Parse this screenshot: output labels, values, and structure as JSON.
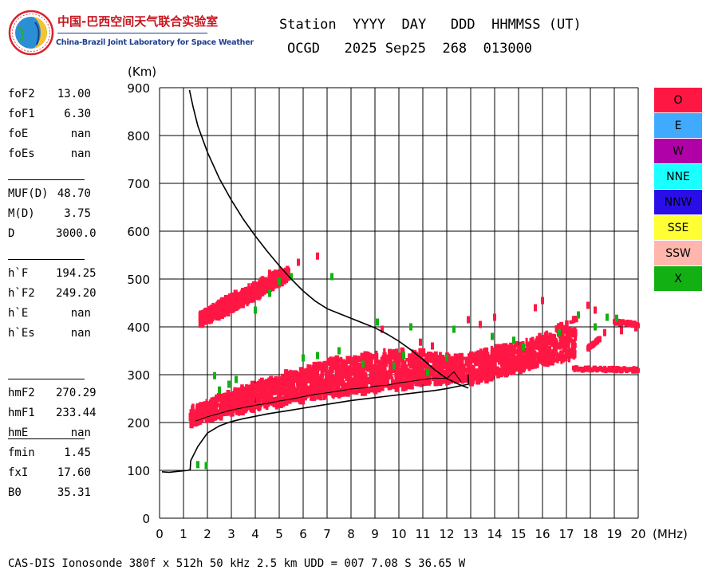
{
  "header": {
    "org_name_cn": "中国-巴西空间天气联合实验室",
    "org_name_en": "China-Brazil Joint Laboratory for Space Weather",
    "columns_line": "Station  YYYY  DAY   DDD  HHMMSS (UT)",
    "values_line": "OCGD   2025 Sep25  268  013000"
  },
  "params": {
    "group1": [
      {
        "label": "foF2",
        "value": "13.00"
      },
      {
        "label": "foF1",
        "value": "6.30"
      },
      {
        "label": "foE",
        "value": "nan"
      },
      {
        "label": "foEs",
        "value": "nan"
      }
    ],
    "group2": [
      {
        "label": "MUF(D)",
        "value": "48.70"
      },
      {
        "label": "M(D)",
        "value": "3.75"
      },
      {
        "label": "D",
        "value": "3000.0"
      }
    ],
    "group3": [
      {
        "label": "h`F",
        "value": "194.25"
      },
      {
        "label": "h`F2",
        "value": "249.20"
      },
      {
        "label": "h`E",
        "value": "nan"
      },
      {
        "label": "h`Es",
        "value": "nan"
      }
    ],
    "group4": [
      {
        "label": "hmF2",
        "value": "270.29"
      },
      {
        "label": "hmF1",
        "value": "233.44"
      },
      {
        "label": "hmE",
        "value": "nan"
      }
    ],
    "group5": [
      {
        "label": "fmin",
        "value": "1.45"
      },
      {
        "label": "fxI",
        "value": "17.60"
      },
      {
        "label": "B0",
        "value": "35.31"
      }
    ]
  },
  "legend": [
    {
      "label": "O",
      "color": "#ff1744"
    },
    {
      "label": "E",
      "color": "#40aaff"
    },
    {
      "label": "W",
      "color": "#b000a8"
    },
    {
      "label": "NNE",
      "color": "#1affff"
    },
    {
      "label": "NNW",
      "color": "#2a0ee8"
    },
    {
      "label": "SSE",
      "color": "#ffff33"
    },
    {
      "label": "SSW",
      "color": "#ffb6ad"
    },
    {
      "label": "X",
      "color": "#12b012"
    }
  ],
  "footer": "CAS-DIS Ionosonde 380f x 512h 50 kHz 2.5 km UDD = 007 7.08 S 36.65 W",
  "chart_data": {
    "type": "scatter",
    "title": "",
    "xlabel": "(MHz)",
    "ylabel": "(Km)",
    "xlim": [
      0,
      20
    ],
    "ylim": [
      0,
      900
    ],
    "xticks": [
      0,
      1,
      2,
      3,
      4,
      5,
      6,
      7,
      8,
      9,
      10,
      11,
      12,
      13,
      14,
      15,
      16,
      17,
      18,
      19,
      20
    ],
    "yticks": [
      0,
      100,
      200,
      300,
      400,
      500,
      600,
      700,
      800,
      900
    ],
    "grid": true,
    "legend_position": "right",
    "series": [
      {
        "name": "O",
        "color": "#ff1744",
        "bands": [
          {
            "x_start": 1.3,
            "x_end": 12.9,
            "y_low": [
              196,
              212,
              225,
              236,
              247,
              256,
              263,
              270,
              277,
              283,
              290
            ],
            "y_high": [
              232,
              255,
              275,
              295,
              312,
              328,
              340,
              348,
              350,
              345,
              335
            ]
          },
          {
            "x_start": 12.9,
            "x_end": 17.4,
            "y_low": [
              282,
              292,
              305,
              318,
              328,
              335
            ],
            "y_high": [
              342,
              352,
              362,
              372,
              395,
              418
            ]
          },
          {
            "x_start": 1.7,
            "x_end": 5.4,
            "y_low": [
              404,
              425,
              448,
              475,
              500
            ],
            "y_high": [
              428,
              455,
              478,
              505,
              525
            ]
          }
        ],
        "points": [
          {
            "x": 6.6,
            "y": 548
          },
          {
            "x": 5.8,
            "y": 535
          },
          {
            "x": 4.6,
            "y": 512
          },
          {
            "x": 16.0,
            "y": 455
          },
          {
            "x": 15.7,
            "y": 440
          },
          {
            "x": 17.9,
            "y": 445
          },
          {
            "x": 18.2,
            "y": 435
          },
          {
            "x": 14.0,
            "y": 420
          },
          {
            "x": 13.4,
            "y": 405
          },
          {
            "x": 12.9,
            "y": 415
          },
          {
            "x": 18.6,
            "y": 388
          },
          {
            "x": 19.9,
            "y": 398
          },
          {
            "x": 19.3,
            "y": 392
          },
          {
            "x": 10.9,
            "y": 368
          },
          {
            "x": 11.4,
            "y": 360
          },
          {
            "x": 9.3,
            "y": 395
          }
        ],
        "traces": [
          {
            "from": [
              17.3,
              312
            ],
            "to": [
              20.0,
              310
            ]
          },
          {
            "from": [
              19.0,
              410
            ],
            "to": [
              20.0,
              405
            ]
          },
          {
            "from": [
              17.9,
              355
            ],
            "to": [
              18.4,
              375
            ]
          }
        ]
      },
      {
        "name": "X",
        "color": "#12b012",
        "points": [
          {
            "x": 1.6,
            "y": 112
          },
          {
            "x": 1.95,
            "y": 110
          },
          {
            "x": 2.3,
            "y": 298
          },
          {
            "x": 2.5,
            "y": 268
          },
          {
            "x": 3.2,
            "y": 290
          },
          {
            "x": 2.9,
            "y": 280
          },
          {
            "x": 4.6,
            "y": 470
          },
          {
            "x": 5.0,
            "y": 495
          },
          {
            "x": 5.5,
            "y": 505
          },
          {
            "x": 4.0,
            "y": 435
          },
          {
            "x": 7.2,
            "y": 505
          },
          {
            "x": 6.0,
            "y": 335
          },
          {
            "x": 8.5,
            "y": 322
          },
          {
            "x": 9.8,
            "y": 318
          },
          {
            "x": 11.2,
            "y": 305
          },
          {
            "x": 9.1,
            "y": 410
          },
          {
            "x": 10.5,
            "y": 400
          },
          {
            "x": 12.3,
            "y": 395
          },
          {
            "x": 13.9,
            "y": 380
          },
          {
            "x": 14.8,
            "y": 372
          },
          {
            "x": 15.2,
            "y": 358
          },
          {
            "x": 16.7,
            "y": 388
          },
          {
            "x": 17.5,
            "y": 425
          },
          {
            "x": 18.2,
            "y": 400
          },
          {
            "x": 19.1,
            "y": 418
          },
          {
            "x": 18.7,
            "y": 420
          },
          {
            "x": 6.6,
            "y": 340
          },
          {
            "x": 7.5,
            "y": 350
          },
          {
            "x": 10.2,
            "y": 340
          },
          {
            "x": 12.0,
            "y": 335
          }
        ]
      },
      {
        "name": "profile",
        "color": "#000000",
        "x": [
          1.25,
          1.4,
          1.6,
          2.0,
          2.5,
          3.0,
          3.5,
          4.0,
          4.5,
          5.0,
          5.5,
          6.0,
          6.5,
          7.0,
          7.5,
          8.0,
          8.5,
          9.0,
          9.5,
          10.0,
          10.5,
          11.0,
          11.5,
          12.0,
          12.5,
          12.9
        ],
        "y": [
          895,
          860,
          820,
          765,
          710,
          665,
          625,
          590,
          558,
          528,
          500,
          475,
          454,
          438,
          428,
          418,
          408,
          398,
          385,
          370,
          352,
          332,
          310,
          292,
          280,
          272
        ]
      },
      {
        "name": "virtual-height-trace",
        "color": "#000000",
        "x": [
          0.1,
          0.4,
          0.8,
          1.2,
          1.28,
          1.3,
          1.4,
          1.6,
          2.0,
          2.5,
          3.0,
          3.5,
          4.0,
          4.5,
          5.0,
          5.5,
          6.0,
          6.5,
          7.0,
          7.5,
          8.0,
          8.5,
          9.0,
          9.5,
          10.0,
          10.5,
          11.0,
          11.5,
          12.0,
          12.5,
          12.9,
          12.9
        ],
        "y": [
          97,
          96,
          98,
          100,
          102,
          120,
          130,
          150,
          178,
          193,
          202,
          208,
          213,
          218,
          222,
          226,
          230,
          234,
          238,
          242,
          246,
          249,
          252,
          255,
          258,
          261,
          264,
          267,
          271,
          276,
          280,
          300
        ]
      },
      {
        "name": "scaled-trace",
        "color": "#000000",
        "x": [
          1.5,
          2.0,
          2.5,
          3.0,
          3.5,
          4.0,
          4.5,
          5.0,
          5.5,
          6.0,
          6.5,
          7.0,
          7.5,
          8.0,
          8.5,
          9.0,
          9.5,
          10.0,
          10.5,
          11.0,
          11.5,
          12.0,
          12.3,
          12.6
        ],
        "y": [
          203,
          212,
          219,
          226,
          231,
          236,
          240,
          245,
          249,
          254,
          259,
          262,
          266,
          270,
          272,
          276,
          278,
          283,
          286,
          290,
          293,
          292,
          306,
          285
        ]
      }
    ]
  }
}
